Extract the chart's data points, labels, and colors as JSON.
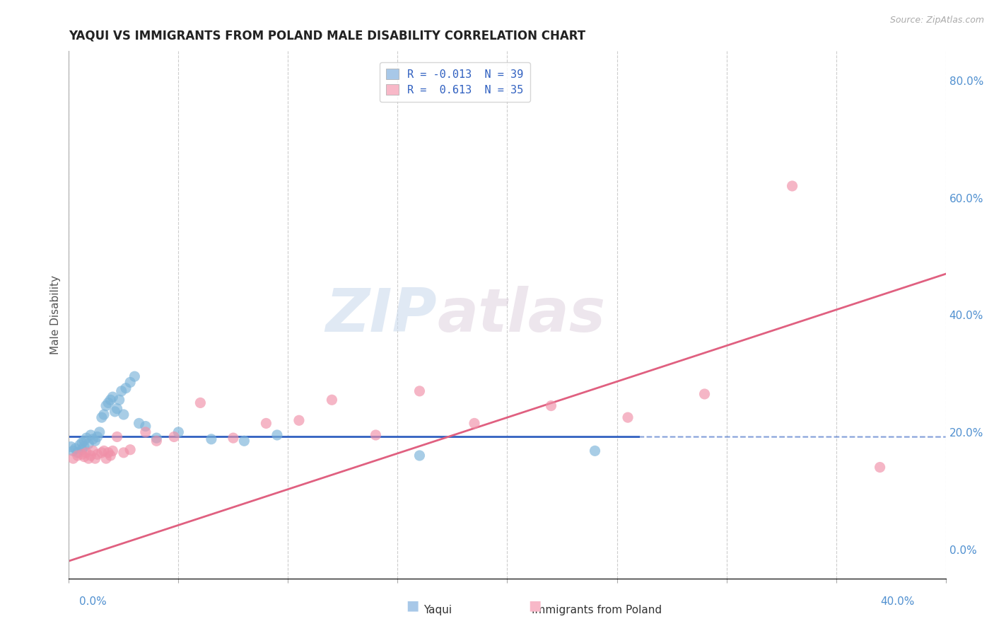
{
  "title": "YAQUI VS IMMIGRANTS FROM POLAND MALE DISABILITY CORRELATION CHART",
  "source": "Source: ZipAtlas.com",
  "ylabel": "Male Disability",
  "legend_line1": "R = -0.013  N = 39",
  "legend_line2": "R =  0.613  N = 35",
  "series1_name": "Yaqui",
  "series2_name": "Immigrants from Poland",
  "series1_color": "#7ab3d9",
  "series2_color": "#f090a8",
  "series1_line_color": "#3060c0",
  "series2_line_color": "#e06080",
  "series1_patch_color": "#a8c8e8",
  "series2_patch_color": "#f8b8c8",
  "watermark_zip": "ZIP",
  "watermark_atlas": "atlas",
  "xlim": [
    0.0,
    0.4
  ],
  "ylim": [
    -0.05,
    0.85
  ],
  "background_color": "#ffffff",
  "grid_color": "#c8c8c8",
  "ytick_color": "#5090d0",
  "xtick_color": "#5090d0",
  "yaqui_x": [
    0.001,
    0.002,
    0.003,
    0.004,
    0.005,
    0.006,
    0.006,
    0.007,
    0.007,
    0.008,
    0.009,
    0.01,
    0.011,
    0.012,
    0.013,
    0.014,
    0.015,
    0.016,
    0.017,
    0.018,
    0.019,
    0.02,
    0.021,
    0.022,
    0.023,
    0.024,
    0.025,
    0.026,
    0.028,
    0.03,
    0.032,
    0.035,
    0.04,
    0.05,
    0.065,
    0.08,
    0.095,
    0.16,
    0.24
  ],
  "yaqui_y": [
    0.175,
    0.168,
    0.172,
    0.165,
    0.178,
    0.182,
    0.17,
    0.185,
    0.175,
    0.19,
    0.18,
    0.195,
    0.188,
    0.185,
    0.192,
    0.2,
    0.225,
    0.23,
    0.245,
    0.25,
    0.255,
    0.26,
    0.235,
    0.24,
    0.255,
    0.27,
    0.23,
    0.275,
    0.285,
    0.295,
    0.215,
    0.21,
    0.19,
    0.2,
    0.188,
    0.185,
    0.195,
    0.16,
    0.168
  ],
  "poland_x": [
    0.002,
    0.004,
    0.006,
    0.007,
    0.008,
    0.009,
    0.01,
    0.011,
    0.012,
    0.013,
    0.015,
    0.016,
    0.017,
    0.018,
    0.019,
    0.02,
    0.022,
    0.025,
    0.028,
    0.035,
    0.04,
    0.048,
    0.06,
    0.075,
    0.09,
    0.105,
    0.12,
    0.14,
    0.16,
    0.185,
    0.22,
    0.255,
    0.29,
    0.33,
    0.37
  ],
  "poland_y": [
    0.155,
    0.16,
    0.162,
    0.158,
    0.165,
    0.155,
    0.16,
    0.168,
    0.155,
    0.162,
    0.165,
    0.168,
    0.155,
    0.165,
    0.16,
    0.168,
    0.192,
    0.165,
    0.17,
    0.2,
    0.185,
    0.192,
    0.25,
    0.19,
    0.215,
    0.22,
    0.255,
    0.195,
    0.27,
    0.215,
    0.245,
    0.225,
    0.265,
    0.62,
    0.14
  ],
  "blue_line_y_intercept": 0.192,
  "blue_line_slope": -0.0005,
  "pink_line_y_at_0": -0.02,
  "pink_line_y_at_40": 0.47
}
